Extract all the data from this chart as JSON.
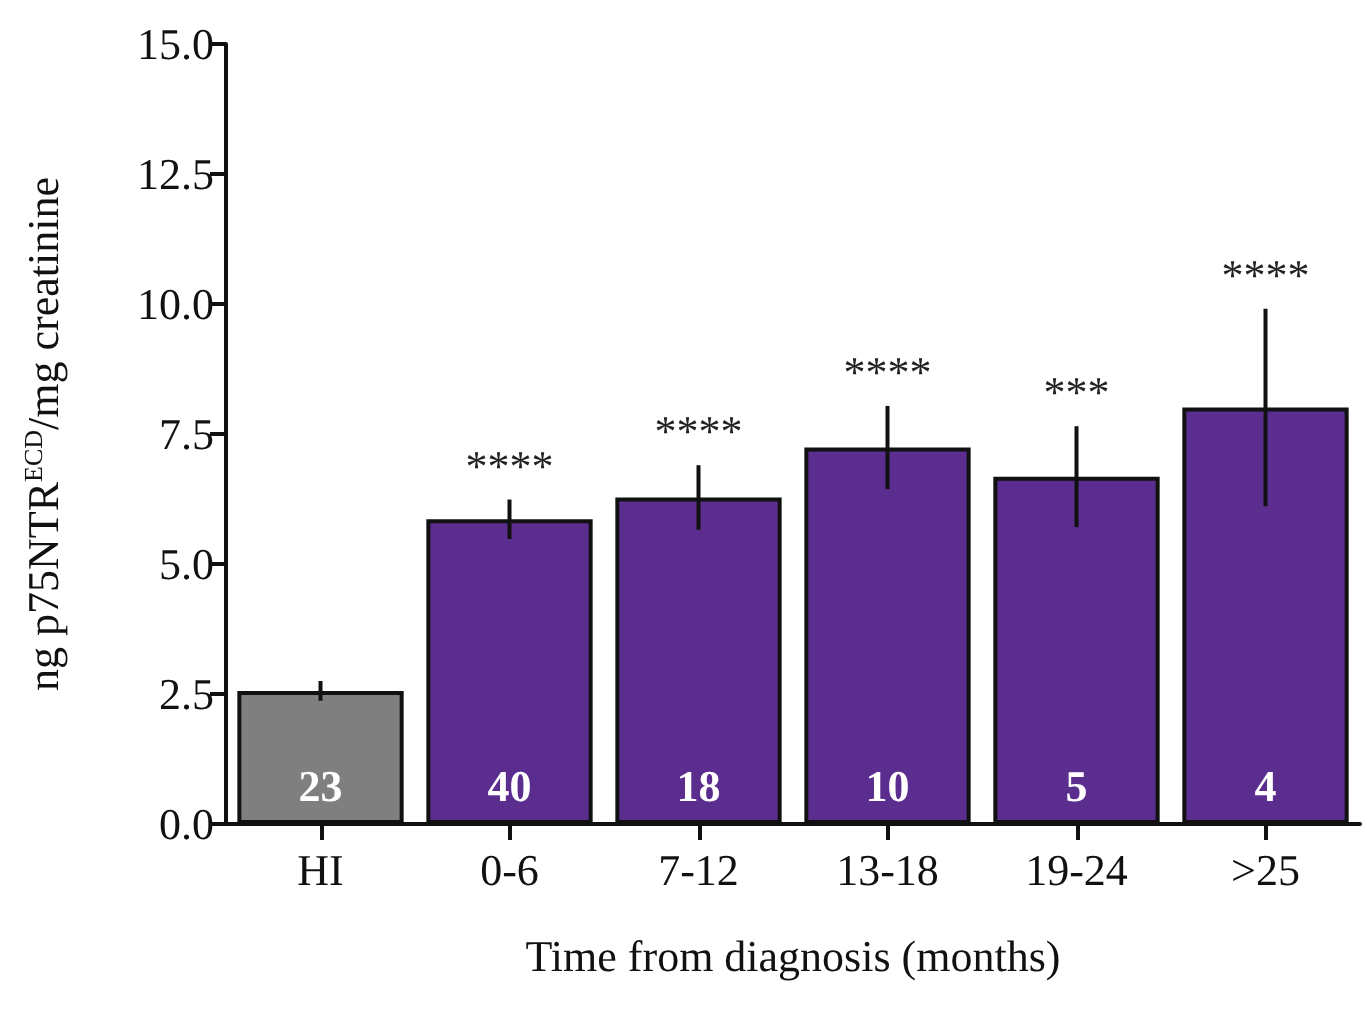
{
  "chart_data": {
    "type": "bar",
    "xlabel": "Time from diagnosis (months)",
    "ylabel": "ng p75NTR$^{ECD}$/mg creatinine",
    "categories": [
      "HI",
      "0-6",
      "7-12",
      "13-18",
      "19-24",
      ">25"
    ],
    "values": [
      2.56,
      5.86,
      6.28,
      7.24,
      6.68,
      8.01
    ],
    "colors": [
      "#7f7f7f",
      "#5b2d8e",
      "#5b2d8e",
      "#5b2d8e",
      "#5b2d8e",
      "#5b2d8e"
    ],
    "errors": [
      0.19,
      0.38,
      0.62,
      0.8,
      0.97,
      1.9
    ],
    "ylim": [
      0,
      15
    ],
    "yticks": [
      {
        "value": 0,
        "label": "0.0"
      },
      {
        "value": 2.5,
        "label": "2.5"
      },
      {
        "value": 5,
        "label": "5.0"
      },
      {
        "value": 7.5,
        "label": "7.5"
      },
      {
        "value": 10,
        "label": "10.0"
      },
      {
        "value": 12.5,
        "label": "12.5"
      },
      {
        "value": 15,
        "label": "15.0"
      }
    ],
    "grid": false,
    "annotations": [
      {
        "text": "23",
        "x": "HI",
        "y": 0
      },
      {
        "text": "40",
        "x": "0-6",
        "y": 0
      },
      {
        "text": "18",
        "x": "7-12",
        "y": 0
      },
      {
        "text": "10",
        "x": "13-18",
        "y": 0
      },
      {
        "text": "5",
        "x": "19-24",
        "y": 0
      },
      {
        "text": "4",
        "x": ">25",
        "y": 0
      },
      {
        "text": "****",
        "x": "0-6",
        "y": 6.24
      },
      {
        "text": "****",
        "x": "7-12",
        "y": 6.9
      },
      {
        "text": "****",
        "x": "13-18",
        "y": 8.04
      },
      {
        "text": "***",
        "x": "19-24",
        "y": 7.65
      },
      {
        "text": "****",
        "x": ">25",
        "y": 9.91
      }
    ]
  }
}
